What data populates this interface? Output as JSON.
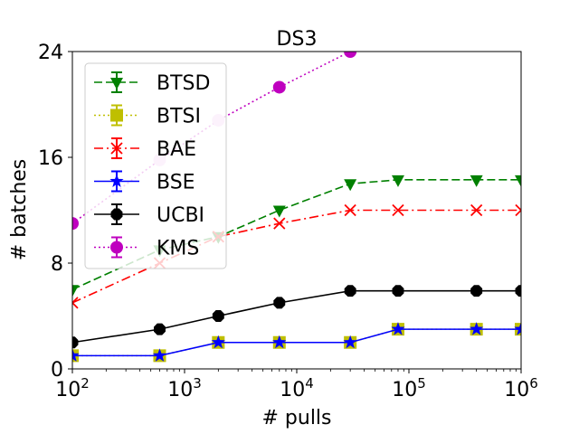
{
  "chart_data": {
    "type": "line",
    "title": "DS3",
    "xlabel": "# pulls",
    "ylabel": "# batches",
    "xscale": "log",
    "xlim": [
      100,
      1000000
    ],
    "ylim": [
      0,
      24
    ],
    "xticks": [
      {
        "value": 100,
        "base": "10",
        "exp": "2"
      },
      {
        "value": 1000,
        "base": "10",
        "exp": "3"
      },
      {
        "value": 10000,
        "base": "10",
        "exp": "4"
      },
      {
        "value": 100000,
        "base": "10",
        "exp": "5"
      },
      {
        "value": 1000000,
        "base": "10",
        "exp": "6"
      }
    ],
    "yticks": [
      {
        "value": 0,
        "label": "0"
      },
      {
        "value": 8,
        "label": "8"
      },
      {
        "value": 16,
        "label": "16"
      },
      {
        "value": 24,
        "label": "24"
      }
    ],
    "legend_position": "top-left",
    "series": [
      {
        "name": "BTSD",
        "color": "#008000",
        "dash": "dashed",
        "marker": "triangle-down",
        "x": [
          100,
          600,
          2000,
          7000,
          30000,
          80000,
          400000,
          1000000
        ],
        "y": [
          6,
          9,
          10,
          12,
          14,
          14.3,
          14.3,
          14.3
        ]
      },
      {
        "name": "BTSI",
        "color": "#bfbf00",
        "dash": "dotted",
        "marker": "square",
        "x": [
          100,
          600,
          2000,
          7000,
          30000,
          80000,
          400000,
          1000000
        ],
        "y": [
          1,
          1,
          2,
          2,
          2,
          3,
          3,
          3
        ]
      },
      {
        "name": "BAE",
        "color": "#ff0000",
        "dash": "dashdot",
        "marker": "x",
        "x": [
          100,
          600,
          2000,
          7000,
          30000,
          80000,
          400000,
          1000000
        ],
        "y": [
          5,
          8,
          10,
          11,
          12,
          12,
          12,
          12
        ]
      },
      {
        "name": "BSE",
        "color": "#0000ff",
        "dash": "solid",
        "marker": "star",
        "x": [
          100,
          600,
          2000,
          7000,
          30000,
          80000,
          400000,
          1000000
        ],
        "y": [
          1,
          1,
          2,
          2,
          2,
          3,
          3,
          3
        ]
      },
      {
        "name": "UCBI",
        "color": "#000000",
        "dash": "solid",
        "marker": "octagon",
        "x": [
          100,
          600,
          2000,
          7000,
          30000,
          80000,
          400000,
          1000000
        ],
        "y": [
          2,
          3,
          4,
          5,
          5.9,
          5.9,
          5.9,
          5.9
        ]
      },
      {
        "name": "KMS",
        "color": "#bf00bf",
        "dash": "dotted",
        "marker": "circle",
        "x": [
          100,
          600,
          2000,
          7000,
          30000
        ],
        "y": [
          11,
          15.8,
          18.8,
          21.3,
          24
        ]
      }
    ]
  }
}
